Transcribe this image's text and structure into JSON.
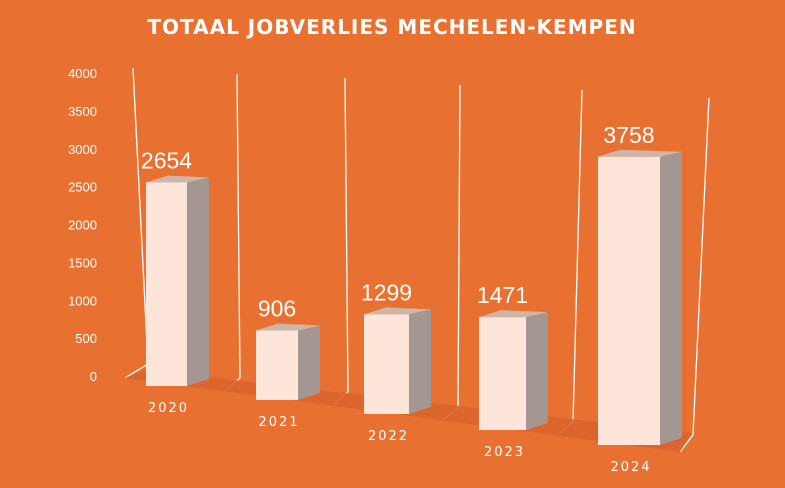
{
  "chart_data": {
    "type": "bar",
    "title": "TOTAAL JOBVERLIES MECHELEN-KEMPEN",
    "categories": [
      "2020",
      "2021",
      "2022",
      "2023",
      "2024"
    ],
    "values": [
      2654,
      906,
      1299,
      1471,
      3758
    ],
    "data_labels": [
      "2654",
      "906",
      "1299",
      "1471",
      "3758"
    ],
    "ylim": [
      0,
      4000
    ],
    "yticks": [
      "0",
      "500",
      "1000",
      "1500",
      "2000",
      "2500",
      "3000",
      "3500",
      "4000"
    ],
    "xlabel": "",
    "ylabel": "",
    "grid": "vertical panel lines",
    "legend": "none",
    "colors": {
      "background": "#E87132",
      "bar_front": "#FDE5DA",
      "bar_side": "#A49690",
      "bar_top": "#CDB5A8",
      "floor": "#D9642A",
      "lines": "#FFFFFF",
      "text": "#FFFFFF"
    }
  }
}
